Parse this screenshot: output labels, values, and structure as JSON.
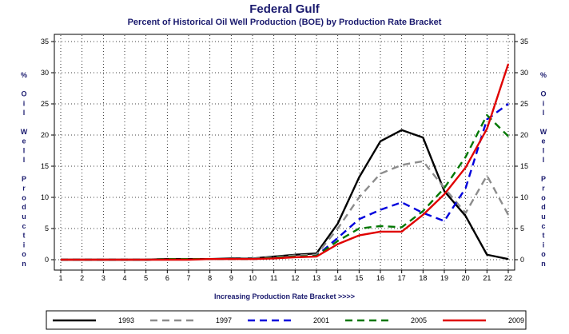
{
  "chart_data": {
    "type": "line",
    "title": "Federal Gulf",
    "subtitle": "Percent of Historical Oil Well Production (BOE) by Production Rate Bracket",
    "xlabel": "Increasing Production Rate Bracket >>>>",
    "ylabel": "% Oil Well Production",
    "ylim": [
      0,
      35
    ],
    "yticks": [
      "0",
      "5",
      "10",
      "15",
      "20",
      "25",
      "30",
      "35"
    ],
    "x": [
      1,
      2,
      3,
      4,
      5,
      6,
      7,
      8,
      9,
      10,
      11,
      12,
      13,
      14,
      15,
      16,
      17,
      18,
      19,
      20,
      21,
      22
    ],
    "xticks": [
      "1",
      "2",
      "3",
      "4",
      "5",
      "6",
      "7",
      "8",
      "9",
      "10",
      "11",
      "12",
      "13",
      "14",
      "15",
      "16",
      "17",
      "18",
      "19",
      "20",
      "21",
      "22"
    ],
    "grid": true,
    "legend_position": "bottom",
    "series": [
      {
        "name": "1993",
        "color": "#000000",
        "dash": "solid",
        "values": [
          0,
          0,
          0,
          0,
          0,
          0.1,
          0.1,
          0.1,
          0.2,
          0.2,
          0.5,
          0.8,
          1.0,
          5.8,
          13.2,
          19.0,
          20.8,
          19.6,
          11.0,
          7.0,
          0.8,
          0.1
        ]
      },
      {
        "name": "1997",
        "color": "#8c8c8c",
        "dash": "dashed",
        "values": [
          0,
          0,
          0,
          0,
          0,
          0.1,
          0.1,
          0.1,
          0.1,
          0.2,
          0.4,
          0.7,
          0.8,
          5.0,
          10.0,
          13.8,
          15.2,
          15.8,
          11.5,
          7.5,
          13.5,
          7.2
        ]
      },
      {
        "name": "2001",
        "color": "#0000dd",
        "dash": "dashed",
        "values": [
          0,
          0,
          0,
          0,
          0,
          0.1,
          0.1,
          0.1,
          0.1,
          0.1,
          0.3,
          0.5,
          0.6,
          3.5,
          6.5,
          8.0,
          9.2,
          7.5,
          6.2,
          11.5,
          22.5,
          25.0
        ]
      },
      {
        "name": "2005",
        "color": "#007700",
        "dash": "dashed",
        "values": [
          0,
          0,
          0,
          0,
          0,
          0.1,
          0.1,
          0.1,
          0.1,
          0.1,
          0.3,
          0.5,
          0.6,
          3.0,
          5.0,
          5.4,
          5.2,
          7.8,
          11.5,
          16.5,
          23.2,
          19.8
        ]
      },
      {
        "name": "2009",
        "color": "#e00000",
        "dash": "solid",
        "values": [
          0,
          0,
          0,
          0,
          0,
          0,
          0,
          0.1,
          0.1,
          0.1,
          0.2,
          0.4,
          0.5,
          2.5,
          3.9,
          4.5,
          4.5,
          7.2,
          10.5,
          14.8,
          21.0,
          31.4
        ]
      }
    ]
  }
}
